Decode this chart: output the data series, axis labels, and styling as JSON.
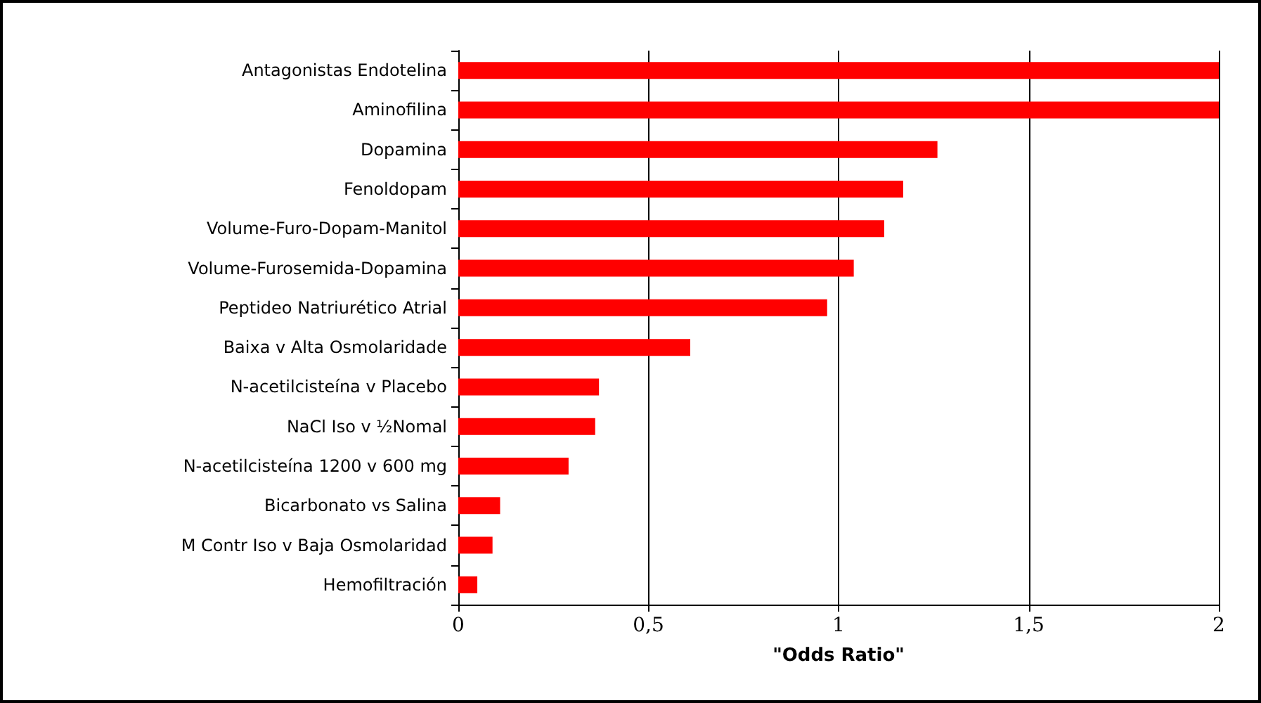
{
  "chart_data": {
    "type": "bar",
    "orientation": "horizontal",
    "xlabel": "\"Odds Ratio\"",
    "categories": [
      "Antagonistas Endotelina",
      "Aminofilina",
      "Dopamina",
      "Fenoldopam",
      "Volume-Furo-Dopam-Manitol",
      "Volume-Furosemida-Dopamina",
      "Peptideo Natriurético Atrial",
      "Baixa v Alta Osmolaridade",
      "N-acetilcisteína v Placebo",
      "NaCl Iso v ½Nomal",
      "N-acetilcisteína 1200 v 600 mg",
      "Bicarbonato vs Salina",
      "M Contr Iso v Baja Osmolaridad",
      "Hemofiltración"
    ],
    "values": [
      2,
      2,
      1.26,
      1.17,
      1.12,
      1.04,
      0.97,
      0.61,
      0.37,
      0.36,
      0.29,
      0.11,
      0.09,
      0.05
    ],
    "color": "#ff0000",
    "xlim": [
      0,
      2
    ],
    "xticks": [
      {
        "value": 0,
        "label": "0"
      },
      {
        "value": 0.5,
        "label": "0,5"
      },
      {
        "value": 1,
        "label": "1"
      },
      {
        "value": 1.5,
        "label": "1,5"
      },
      {
        "value": 2,
        "label": "2"
      }
    ],
    "grid": "x"
  }
}
